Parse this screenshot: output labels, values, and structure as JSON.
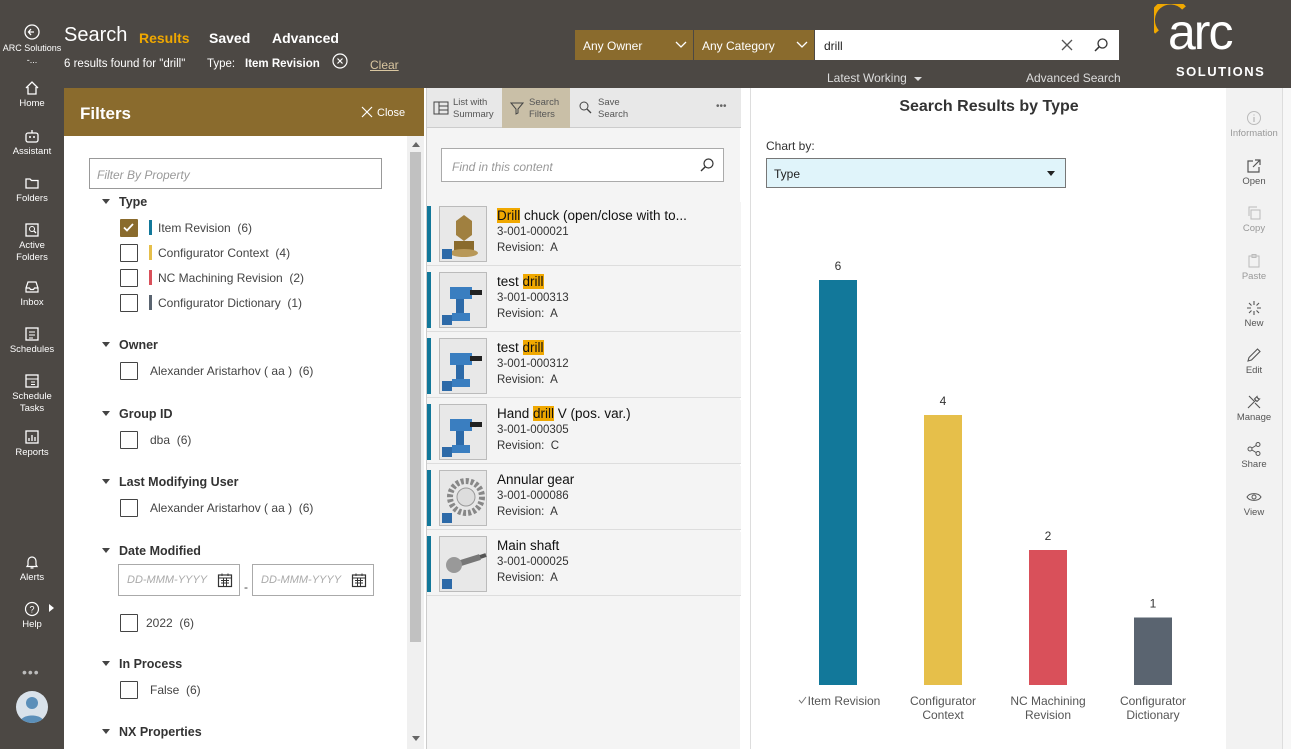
{
  "nav": {
    "back": "ARC Solutions -...",
    "home": "Home",
    "assistant": "Assistant",
    "folders": "Folders",
    "active_folders": "Active Folders",
    "inbox": "Inbox",
    "schedules": "Schedules",
    "schedule_tasks": "Schedule Tasks",
    "reports": "Reports",
    "alerts": "Alerts",
    "help": "Help"
  },
  "header": {
    "title": "Search",
    "tabs": [
      "Results",
      "Saved",
      "Advanced"
    ],
    "summary": "6 results found for \"drill\"",
    "type_label": "Type:",
    "type_value": "Item Revision",
    "clear": "Clear",
    "owner": "Any Owner",
    "category": "Any Category",
    "query": "drill",
    "latest": "Latest Working",
    "advanced_search": "Advanced Search",
    "logo": "arc",
    "logo_sub": "SOLUTIONS"
  },
  "filters": {
    "title": "Filters",
    "close": "Close",
    "placeholder": "Filter By Property",
    "type": {
      "label": "Type",
      "items": [
        {
          "label": "Item Revision",
          "count": "(6)",
          "color": "#12789a",
          "checked": true
        },
        {
          "label": "Configurator Context",
          "count": "(4)",
          "color": "#e6bf4a",
          "checked": false
        },
        {
          "label": "NC Machining Revision",
          "count": "(2)",
          "color": "#d9505a",
          "checked": false
        },
        {
          "label": "Configurator Dictionary",
          "count": "(1)",
          "color": "#5a6470",
          "checked": false
        }
      ]
    },
    "owner": {
      "label": "Owner",
      "item": "Alexander Aristarhov ( aa )",
      "count": "(6)"
    },
    "group": {
      "label": "Group ID",
      "item": "dba",
      "count": "(6)"
    },
    "last_user": {
      "label": "Last Modifying User",
      "item": "Alexander Aristarhov ( aa )",
      "count": "(6)"
    },
    "date": {
      "label": "Date Modified",
      "placeholder": "DD-MMM-YYYY",
      "dash": "-",
      "year": "2022",
      "count": "(6)"
    },
    "process": {
      "label": "In Process",
      "item": "False",
      "count": "(6)"
    },
    "nx": {
      "label": "NX Properties"
    }
  },
  "results": {
    "toolbar": {
      "list": "List with Summary",
      "filters": "Search Filters",
      "save": "Save Search"
    },
    "find_placeholder": "Find in this content",
    "items": [
      {
        "pre": "",
        "hl": "Drill",
        "post": " chuck (open/close with to...",
        "id": "3-001-000021",
        "rev_label": "Revision:",
        "rev": "A"
      },
      {
        "pre": "test ",
        "hl": "drill",
        "post": "",
        "id": "3-001-000313",
        "rev_label": "Revision:",
        "rev": "A"
      },
      {
        "pre": "test ",
        "hl": "drill",
        "post": "",
        "id": "3-001-000312",
        "rev_label": "Revision:",
        "rev": "A"
      },
      {
        "pre": "Hand ",
        "hl": "drill",
        "post": " V (pos. var.)",
        "id": "3-001-000305",
        "rev_label": "Revision:",
        "rev": "C"
      },
      {
        "pre": "Annular gear",
        "hl": "",
        "post": "",
        "id": "3-001-000086",
        "rev_label": "Revision:",
        "rev": "A"
      },
      {
        "pre": "Main shaft",
        "hl": "",
        "post": "",
        "id": "3-001-000025",
        "rev_label": "Revision:",
        "rev": "A"
      }
    ]
  },
  "chart_data": {
    "type": "bar",
    "title": "Search Results by Type",
    "chart_by_label": "Chart by:",
    "chart_by_value": "Type",
    "categories": [
      "Item Revision",
      "Configurator Context",
      "NC Machining Revision",
      "Configurator Dictionary"
    ],
    "values": [
      6,
      4,
      2,
      1
    ],
    "colors": [
      "#12789a",
      "#e6bf4a",
      "#d9505a",
      "#5a6470"
    ],
    "ylim": [
      0,
      6
    ],
    "grid": false
  },
  "rightbar": {
    "information": "Information",
    "open": "Open",
    "copy": "Copy",
    "paste": "Paste",
    "new": "New",
    "edit": "Edit",
    "manage": "Manage",
    "share": "Share",
    "view": "View"
  }
}
